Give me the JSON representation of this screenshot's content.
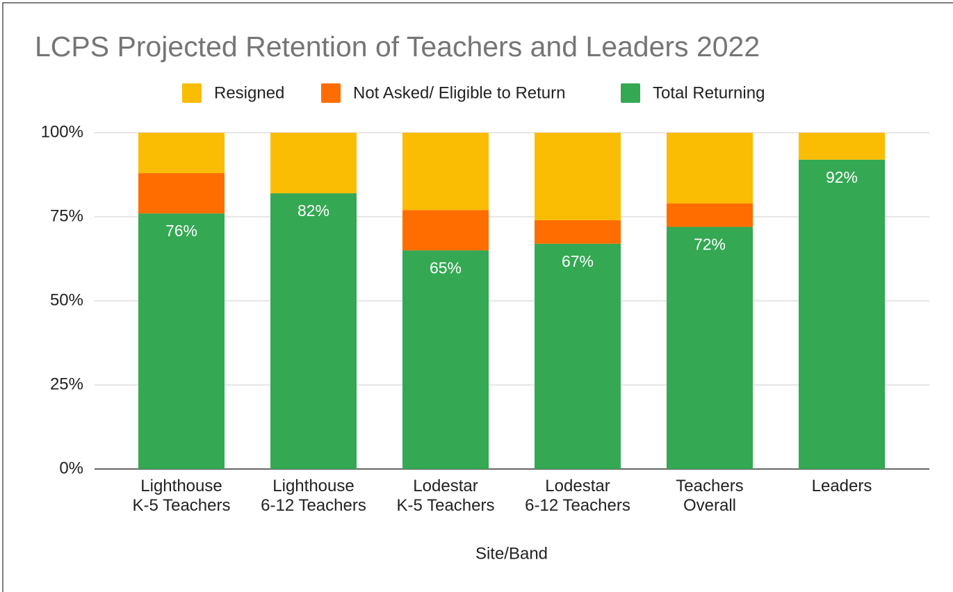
{
  "chart_data": {
    "type": "stacked_bar",
    "title": "LCPS Projected Retention of Teachers and Leaders 2022",
    "x_label": "Site/Band",
    "categories": [
      "Lighthouse\nK-5 Teachers",
      "Lighthouse\n6-12 Teachers",
      "Lodestar\nK-5 Teachers",
      "Lodestar\n6-12 Teachers",
      "Teachers\nOverall",
      "Leaders"
    ],
    "series": [
      {
        "name": "Resigned",
        "color": "#fbbc04",
        "values": [
          12,
          18,
          23,
          26,
          21,
          8
        ]
      },
      {
        "name": "Not Asked/ Eligible to Return",
        "color": "#ff6d01",
        "values": [
          12,
          0,
          12,
          7,
          7,
          0
        ]
      },
      {
        "name": "Total Returning",
        "color": "#34a853",
        "values": [
          76,
          82,
          65,
          67,
          72,
          92
        ],
        "value_labels": [
          "76%",
          "82%",
          "65%",
          "67%",
          "72%",
          "92%"
        ]
      }
    ],
    "ylim": [
      0,
      100
    ],
    "yticks": [
      {
        "value": 0,
        "label": "0%"
      },
      {
        "value": 25,
        "label": "25%"
      },
      {
        "value": 50,
        "label": "50%"
      },
      {
        "value": 75,
        "label": "75%"
      },
      {
        "value": 100,
        "label": "100%"
      }
    ],
    "grid": true,
    "legend": "top"
  }
}
